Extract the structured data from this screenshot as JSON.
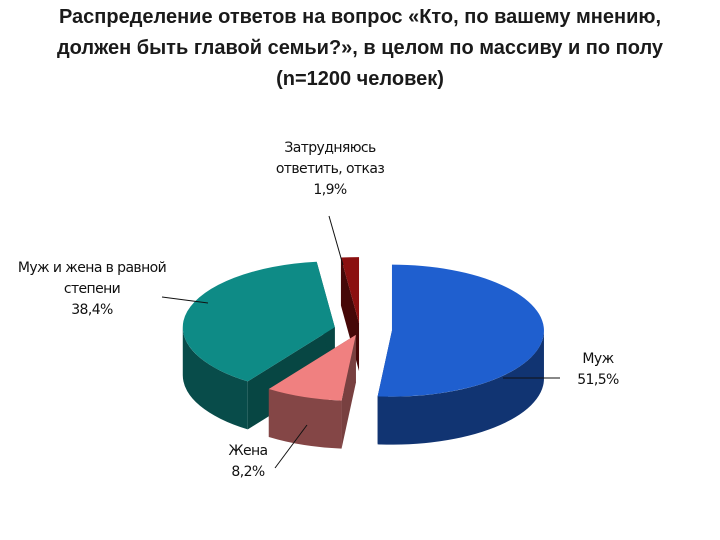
{
  "title_lines": [
    "Распределение ответов на вопрос «Кто, по вашему мнению,",
    "должен быть главой семьи?», в целом по массиву и по полу",
    "(n=1200 человек)"
  ],
  "chart_data": {
    "type": "pie",
    "style": "3d-exploded",
    "title": "Распределение ответов на вопрос «Кто, по вашему мнению, должен быть главой семьи?», в целом по массиву и по полу (n=1200 человек)",
    "slices": [
      {
        "label": "Муж",
        "value": 51.5,
        "value_text": "51,5%",
        "color": "#1f5fcf",
        "label_lines": [
          "Муж",
          "51,5%"
        ]
      },
      {
        "label": "Жена",
        "value": 8.2,
        "value_text": "8,2%",
        "color": "#f08080",
        "label_lines": [
          "Жена",
          "8,2%"
        ]
      },
      {
        "label": "Муж и жена в равной степени",
        "value": 38.4,
        "value_text": "38,4%",
        "color": "#0e8b86",
        "label_lines": [
          "Муж и жена в равной",
          "степени",
          "38,4%"
        ]
      },
      {
        "label": "Затрудняюсь ответить, отказ",
        "value": 1.9,
        "value_text": "1,9%",
        "color": "#8b1010",
        "label_lines": [
          "Затрудняюсь",
          "ответить, отказ",
          "1,9%"
        ]
      }
    ],
    "legend": "none"
  }
}
